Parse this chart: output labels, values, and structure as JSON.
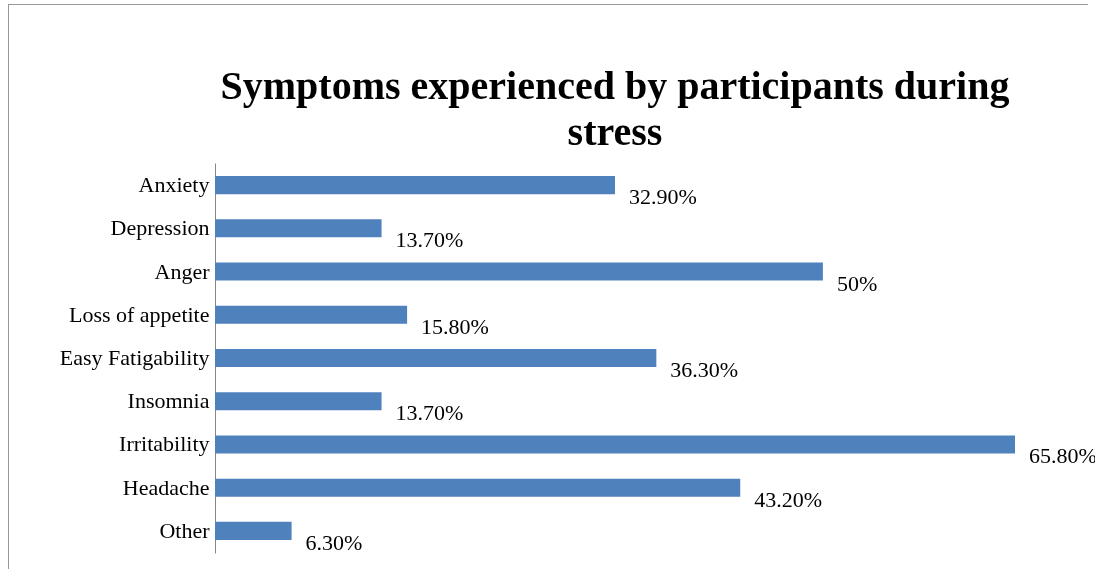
{
  "chart_data": {
    "type": "bar",
    "orientation": "horizontal",
    "title": "Symptoms experienced by participants during stress",
    "categories": [
      "Anxiety",
      "Depression",
      "Anger",
      "Loss of appetite",
      "Easy Fatigability",
      "Insomnia",
      "Irritability",
      "Headache",
      "Other"
    ],
    "values": [
      32.9,
      13.7,
      50,
      15.8,
      36.3,
      13.7,
      65.8,
      43.2,
      6.3
    ],
    "value_labels": [
      "32.90%",
      "13.70%",
      "50%",
      "15.80%",
      "36.30%",
      "13.70%",
      "65.80%",
      "43.20%",
      "6.30%"
    ],
    "color": "#4f81bd",
    "grid": false
  }
}
